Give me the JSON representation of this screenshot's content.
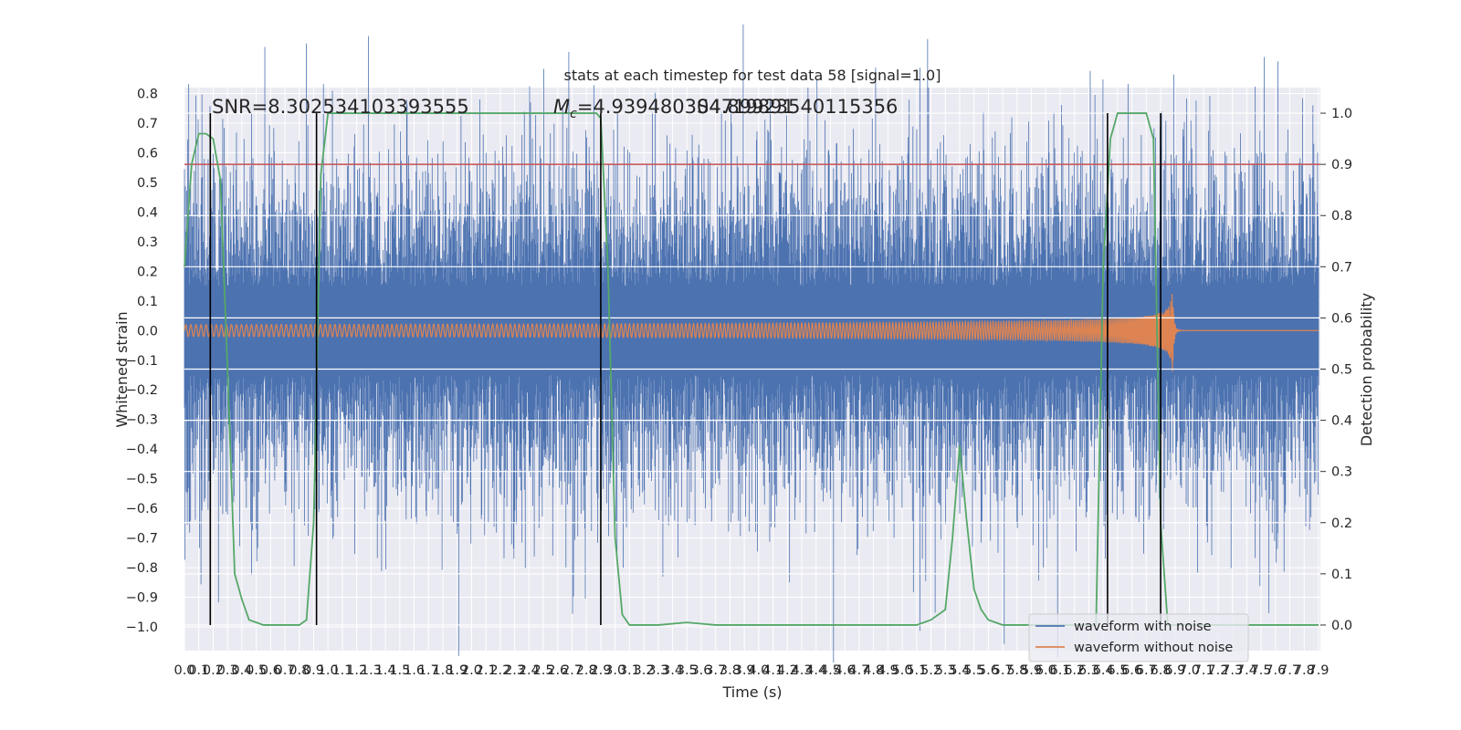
{
  "chart_data": {
    "type": "line",
    "title": "stats at each timestep for test data 58 [signal=1.0]",
    "xlabel": "Time (s)",
    "ylabel": "Whitened strain",
    "y2label": "Detection probability",
    "xlim": [
      0.0,
      7.9
    ],
    "ylim": [
      -1.08,
      0.82
    ],
    "y2lim": [
      -0.05,
      1.05
    ],
    "x_ticks": [
      "0.0",
      "0.1",
      "0.2",
      "0.3",
      "0.4",
      "0.5",
      "0.6",
      "0.7",
      "0.8",
      "0.9",
      "1.0",
      "1.1",
      "1.2",
      "1.3",
      "1.4",
      "1.5",
      "1.6",
      "1.7",
      "1.8",
      "1.9",
      "2.0",
      "2.1",
      "2.2",
      "2.3",
      "2.4",
      "2.5",
      "2.6",
      "2.7",
      "2.8",
      "2.9",
      "3.0",
      "3.1",
      "3.2",
      "3.3",
      "3.4",
      "3.5",
      "3.6",
      "3.7",
      "3.8",
      "3.9",
      "4.0",
      "4.1",
      "4.2",
      "4.3",
      "4.4",
      "4.5",
      "4.6",
      "4.7",
      "4.8",
      "4.9",
      "5.0",
      "5.1",
      "5.2",
      "5.3",
      "5.4",
      "5.5",
      "5.6",
      "5.7",
      "5.8",
      "5.9",
      "6.0",
      "6.1",
      "6.2",
      "6.3",
      "6.4",
      "6.5",
      "6.6",
      "6.7",
      "6.8",
      "6.9",
      "7.0",
      "7.1",
      "7.2",
      "7.3",
      "7.4",
      "7.5",
      "7.6",
      "7.7",
      "7.8",
      "7.9"
    ],
    "y_ticks": [
      "0.8",
      "0.7",
      "0.6",
      "0.5",
      "0.4",
      "0.3",
      "0.2",
      "0.1",
      "0.0",
      "−0.1",
      "−0.2",
      "−0.3",
      "−0.4",
      "−0.5",
      "−0.6",
      "−0.7",
      "−0.8",
      "−0.9",
      "−1.0"
    ],
    "y2_ticks": [
      "1.0",
      "0.9",
      "0.8",
      "0.7",
      "0.6",
      "0.5",
      "0.4",
      "0.3",
      "0.2",
      "0.1",
      "0.0"
    ],
    "annotations": {
      "snr": "SNR=8.302534103393555",
      "mc": "M",
      "mc_sub": "c",
      "mc_value": "=4.939480304719891",
      "mc_overlap": "S4.89923540115356"
    },
    "threshold_prob": 0.9,
    "event_lines_x": [
      0.18,
      0.92,
      2.9,
      6.43,
      6.8
    ],
    "probability": {
      "x": [
        0.0,
        0.05,
        0.1,
        0.15,
        0.2,
        0.25,
        0.3,
        0.35,
        0.4,
        0.45,
        0.5,
        0.55,
        0.6,
        0.65,
        0.7,
        0.75,
        0.8,
        0.85,
        0.9,
        0.95,
        1.0,
        1.2,
        1.5,
        2.0,
        2.5,
        2.8,
        2.87,
        2.9,
        2.95,
        3.0,
        3.05,
        3.1,
        3.3,
        3.5,
        3.7,
        3.9,
        4.2,
        4.5,
        4.8,
        5.0,
        5.1,
        5.2,
        5.3,
        5.35,
        5.4,
        5.45,
        5.5,
        5.55,
        5.6,
        5.65,
        5.7,
        5.8,
        6.0,
        6.2,
        6.3,
        6.35,
        6.4,
        6.45,
        6.5,
        6.55,
        6.6,
        6.7,
        6.75,
        6.8,
        6.85,
        6.9,
        7.0,
        7.2,
        7.5,
        7.7,
        7.9
      ],
      "values": [
        0.7,
        0.9,
        0.96,
        0.96,
        0.95,
        0.87,
        0.5,
        0.1,
        0.05,
        0.01,
        0.005,
        0.0,
        0.0,
        0.0,
        0.0,
        0.0,
        0.0,
        0.01,
        0.2,
        0.88,
        1.0,
        1.0,
        1.0,
        1.0,
        1.0,
        1.0,
        1.0,
        0.99,
        0.7,
        0.17,
        0.02,
        0.0,
        0.0,
        0.005,
        0.0,
        0.0,
        0.0,
        0.0,
        0.0,
        0.0,
        0.0,
        0.01,
        0.03,
        0.17,
        0.35,
        0.2,
        0.07,
        0.03,
        0.01,
        0.005,
        0.0,
        0.0,
        0.0,
        0.0,
        0.0,
        0.0,
        0.7,
        0.95,
        1.0,
        1.0,
        1.0,
        1.0,
        0.95,
        0.2,
        0.0,
        0.0,
        0.0,
        0.0,
        0.0,
        0.0,
        0.0
      ]
    },
    "series": [
      {
        "name": "waveform with noise",
        "color": "#4c72b0",
        "amplitude_typical": 0.45,
        "amplitude_peak": 0.85
      },
      {
        "name": "waveform without noise",
        "color": "#dd8452",
        "amplitude_start": 0.02,
        "amplitude_peak": 0.18,
        "merger_time": 6.88,
        "freq_start_hz": 28
      }
    ],
    "probability_color": "#55a868",
    "threshold_color": "#c44e52",
    "event_line_color": "#000000",
    "grid": true,
    "legend_position": "lower-right"
  }
}
